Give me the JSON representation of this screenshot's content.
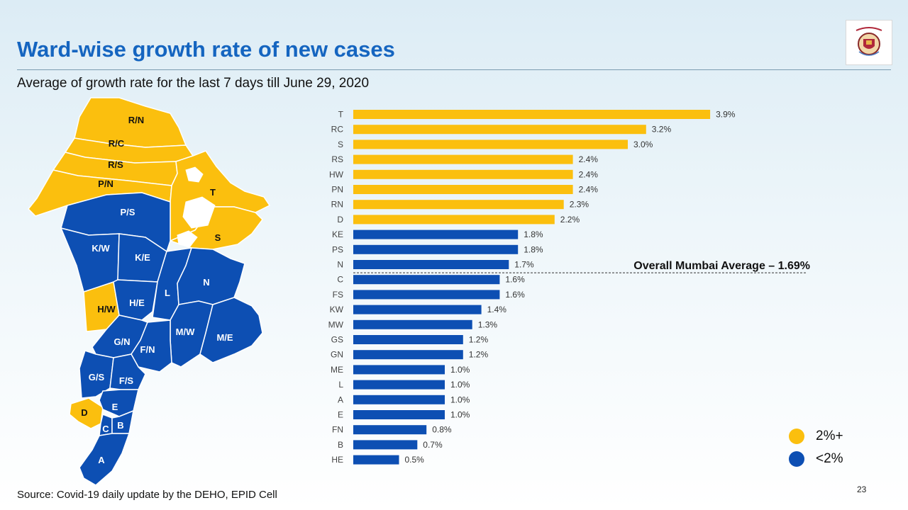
{
  "title": "Ward-wise growth rate of new cases",
  "subtitle": "Average of growth rate for the last 7 days till June 29, 2020",
  "source": "Source: Covid-19 daily update by the DEHO, EPID Cell",
  "page_number": "23",
  "colors": {
    "high": "#fbbf0e",
    "low": "#0d4fb3",
    "title": "#1565c0"
  },
  "legend": [
    {
      "label": "2%+",
      "color": "#fbbf0e"
    },
    {
      "label": "<2%",
      "color": "#0d4fb3"
    }
  ],
  "map": {
    "labels": [
      "R/N",
      "R/C",
      "R/S",
      "P/N",
      "P/S",
      "K/W",
      "K/E",
      "T",
      "S",
      "H/W",
      "H/E",
      "L",
      "N",
      "M/W",
      "M/E",
      "G/N",
      "F/N",
      "G/S",
      "F/S",
      "D",
      "E",
      "C",
      "B",
      "A"
    ]
  },
  "chart_data": {
    "type": "bar",
    "orientation": "horizontal",
    "title": "",
    "xlabel": "",
    "ylabel": "",
    "unit": "%",
    "xlim": [
      0,
      4
    ],
    "categories": [
      "T",
      "RC",
      "S",
      "RS",
      "HW",
      "PN",
      "RN",
      "D",
      "KE",
      "PS",
      "N",
      "C",
      "FS",
      "KW",
      "MW",
      "GS",
      "GN",
      "ME",
      "L",
      "A",
      "E",
      "FN",
      "B",
      "HE"
    ],
    "values": [
      3.9,
      3.2,
      3.0,
      2.4,
      2.4,
      2.4,
      2.3,
      2.2,
      1.8,
      1.8,
      1.7,
      1.6,
      1.6,
      1.4,
      1.3,
      1.2,
      1.2,
      1.0,
      1.0,
      1.0,
      1.0,
      0.8,
      0.7,
      0.5
    ],
    "threshold": 2.0,
    "reference_line": {
      "value": 1.69,
      "label": "Overall Mumbai Average – 1.69%"
    }
  }
}
